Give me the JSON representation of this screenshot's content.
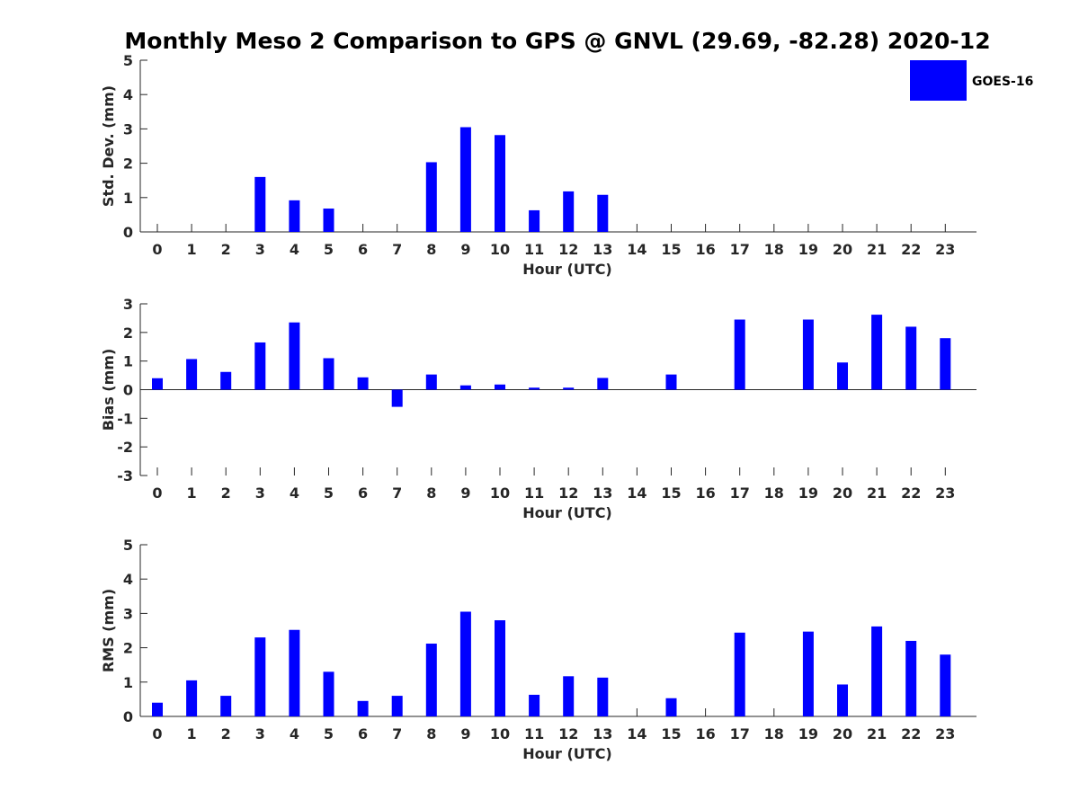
{
  "figure_title": "Monthly Meso 2 Comparison to GPS @ GNVL (29.69, -82.28) 2020-12",
  "legend": {
    "label": "GOES-16",
    "color": "#0000ff"
  },
  "chart_data": [
    {
      "type": "bar",
      "title": "Monthly Meso 2 Comparison to GPS @ GNVL (29.69, -82.28) 2020-12",
      "xlabel": "Hour (UTC)",
      "ylabel": "Std. Dev. (mm)",
      "ylim": [
        0,
        5
      ],
      "yticks": [
        0,
        1,
        2,
        3,
        4,
        5
      ],
      "categories": [
        "0",
        "1",
        "2",
        "3",
        "4",
        "5",
        "6",
        "7",
        "8",
        "9",
        "10",
        "11",
        "12",
        "13",
        "14",
        "15",
        "16",
        "17",
        "18",
        "19",
        "20",
        "21",
        "22",
        "23"
      ],
      "series": [
        {
          "name": "GOES-16",
          "color": "#0000ff",
          "values": [
            null,
            null,
            null,
            1.6,
            0.92,
            0.68,
            null,
            null,
            2.03,
            3.05,
            2.82,
            0.63,
            1.18,
            1.08,
            null,
            null,
            null,
            null,
            null,
            null,
            null,
            null,
            null,
            null
          ]
        }
      ]
    },
    {
      "type": "bar",
      "title": "",
      "xlabel": "Hour (UTC)",
      "ylabel": "Bias (mm)",
      "ylim": [
        -3,
        3
      ],
      "yticks": [
        -3,
        -2,
        -1,
        0,
        1,
        2,
        3
      ],
      "categories": [
        "0",
        "1",
        "2",
        "3",
        "4",
        "5",
        "6",
        "7",
        "8",
        "9",
        "10",
        "11",
        "12",
        "13",
        "14",
        "15",
        "16",
        "17",
        "18",
        "19",
        "20",
        "21",
        "22",
        "23"
      ],
      "series": [
        {
          "name": "GOES-16",
          "color": "#0000ff",
          "values": [
            0.4,
            1.07,
            0.62,
            1.65,
            2.35,
            1.1,
            0.43,
            -0.6,
            0.53,
            0.15,
            0.18,
            0.07,
            0.07,
            0.41,
            null,
            0.53,
            null,
            2.45,
            null,
            2.45,
            0.95,
            2.62,
            2.2,
            1.8
          ]
        }
      ]
    },
    {
      "type": "bar",
      "title": "",
      "xlabel": "Hour (UTC)",
      "ylabel": "RMS (mm)",
      "ylim": [
        0,
        5
      ],
      "yticks": [
        0,
        1,
        2,
        3,
        4,
        5
      ],
      "categories": [
        "0",
        "1",
        "2",
        "3",
        "4",
        "5",
        "6",
        "7",
        "8",
        "9",
        "10",
        "11",
        "12",
        "13",
        "14",
        "15",
        "16",
        "17",
        "18",
        "19",
        "20",
        "21",
        "22",
        "23"
      ],
      "series": [
        {
          "name": "GOES-16",
          "color": "#0000ff",
          "values": [
            0.4,
            1.05,
            0.6,
            2.3,
            2.52,
            1.3,
            0.45,
            0.6,
            2.12,
            3.05,
            2.8,
            0.63,
            1.17,
            1.13,
            null,
            0.53,
            null,
            2.44,
            null,
            2.47,
            0.93,
            2.62,
            2.2,
            1.8
          ]
        }
      ]
    }
  ]
}
